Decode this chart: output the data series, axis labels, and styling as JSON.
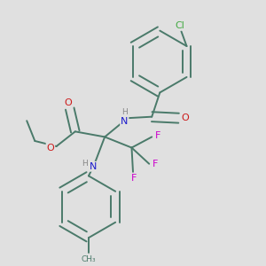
{
  "background_color": "#e0e0e0",
  "bond_color": "#4a7a6a",
  "bond_width": 1.4,
  "fig_size": [
    3.0,
    3.0
  ],
  "dpi": 100,
  "atom_colors": {
    "C": "#4a7a6a",
    "N": "#1a1acc",
    "O": "#cc1a1a",
    "F": "#cc00cc",
    "Cl": "#44aa44",
    "H": "#888888"
  },
  "font_size": 8.0,
  "font_size_small": 6.5
}
